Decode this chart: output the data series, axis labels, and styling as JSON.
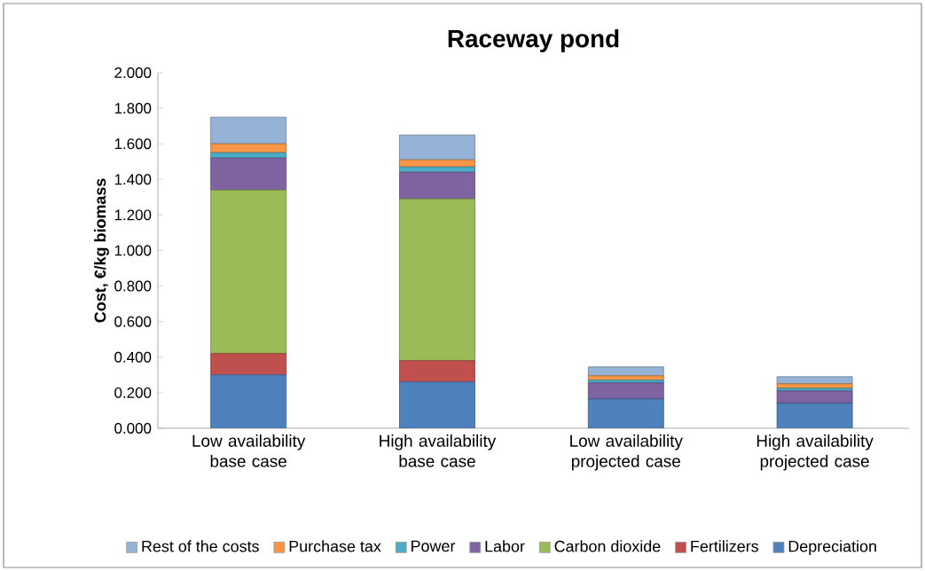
{
  "chart_data": {
    "type": "bar",
    "stacked": true,
    "title": "Raceway pond",
    "ylabel": "Cost, €/kg biomass",
    "categories": [
      "Low availability base case",
      "High availability base case",
      "Low availability projected case",
      "High availability projected case"
    ],
    "series": [
      {
        "name": "Depreciation",
        "color": "#4f81bd",
        "values": [
          0.3,
          0.26,
          0.165,
          0.14
        ]
      },
      {
        "name": "Fertilizers",
        "color": "#c0504d",
        "values": [
          0.12,
          0.12,
          0,
          0
        ]
      },
      {
        "name": "Carbon dioxide",
        "color": "#9bbb59",
        "values": [
          0.92,
          0.91,
          0,
          0
        ]
      },
      {
        "name": "Labor",
        "color": "#8064a2",
        "values": [
          0.18,
          0.15,
          0.09,
          0.07
        ]
      },
      {
        "name": "Power",
        "color": "#4bacc6",
        "values": [
          0.03,
          0.03,
          0.015,
          0.015
        ]
      },
      {
        "name": "Purchase tax",
        "color": "#f79646",
        "values": [
          0.05,
          0.04,
          0.025,
          0.025
        ]
      },
      {
        "name": "Rest of the costs",
        "color": "#95b3d7",
        "values": [
          0.15,
          0.14,
          0.05,
          0.04
        ]
      }
    ],
    "ylim": [
      0,
      2
    ],
    "yticks": [
      {
        "value": 0,
        "label": "0.000"
      },
      {
        "value": 0.2,
        "label": "0.200"
      },
      {
        "value": 0.4,
        "label": "0.400"
      },
      {
        "value": 0.6,
        "label": "0.600"
      },
      {
        "value": 0.8,
        "label": "0.800"
      },
      {
        "value": 1.0,
        "label": "1.000"
      },
      {
        "value": 1.2,
        "label": "1.200"
      },
      {
        "value": 1.4,
        "label": "1.400"
      },
      {
        "value": 1.6,
        "label": "1.600"
      },
      {
        "value": 1.8,
        "label": "1.800"
      },
      {
        "value": 2.0,
        "label": "2.000"
      }
    ],
    "legend": "bottom"
  }
}
